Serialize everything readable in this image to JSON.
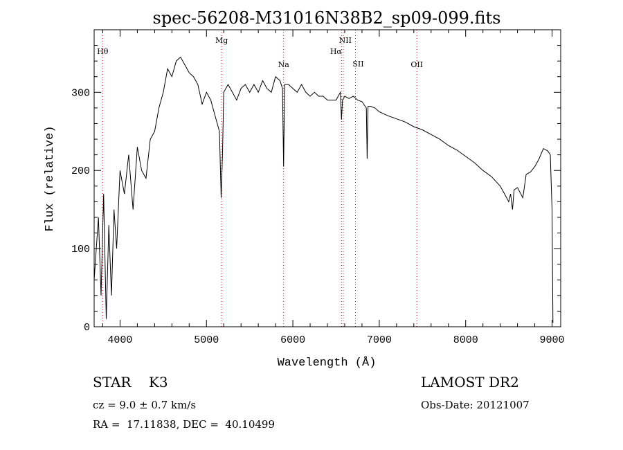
{
  "chart_data": {
    "type": "line",
    "title": "spec-56208-M31016N38B2_sp09-099.fits",
    "xlabel": "Wavelength (Å)",
    "ylabel": "Flux (relative)",
    "xlim": [
      3700,
      9100
    ],
    "ylim": [
      0,
      380
    ],
    "xticks": [
      4000,
      5000,
      6000,
      7000,
      8000,
      9000
    ],
    "yticks": [
      0,
      100,
      200,
      300
    ],
    "grid": false,
    "line_color": "#000000",
    "marker_color": "#cc0000",
    "line_markers": [
      {
        "label": "Hθ",
        "x": 3798
      },
      {
        "label": "Mg",
        "x": 5175
      },
      {
        "label": "Na",
        "x": 5893
      },
      {
        "label": "NII",
        "x": 6583
      },
      {
        "label": "Hα",
        "x": 6563
      },
      {
        "label": "SII",
        "x": 6724
      },
      {
        "label": "OII",
        "x": 7435
      }
    ],
    "series": [
      {
        "x": [
          3700,
          3750,
          3780,
          3810,
          3840,
          3870,
          3900,
          3930,
          3960,
          4000,
          4050,
          4100,
          4150,
          4200,
          4250,
          4300,
          4350,
          4400,
          4450,
          4500,
          4550,
          4600,
          4650,
          4700,
          4750,
          4800,
          4850,
          4900,
          4950,
          5000,
          5050,
          5100,
          5150,
          5170,
          5185,
          5200,
          5250,
          5300,
          5350,
          5400,
          5450,
          5500,
          5550,
          5600,
          5650,
          5700,
          5750,
          5800,
          5850,
          5880,
          5893,
          5905,
          5950,
          6000,
          6050,
          6100,
          6150,
          6200,
          6250,
          6300,
          6350,
          6400,
          6450,
          6500,
          6550,
          6563,
          6575,
          6600,
          6650,
          6700,
          6750,
          6800,
          6850,
          6860,
          6870,
          6900,
          6950,
          7000,
          7100,
          7200,
          7300,
          7400,
          7500,
          7600,
          7700,
          7800,
          7900,
          8000,
          8100,
          8200,
          8300,
          8400,
          8450,
          8498,
          8520,
          8542,
          8560,
          8600,
          8662,
          8700,
          8750,
          8800,
          8850,
          8900,
          8950,
          8980,
          9000,
          9010
        ],
        "y": [
          60,
          140,
          40,
          170,
          10,
          130,
          40,
          150,
          100,
          200,
          170,
          220,
          150,
          230,
          200,
          190,
          240,
          250,
          280,
          300,
          330,
          320,
          340,
          345,
          335,
          325,
          320,
          310,
          285,
          300,
          290,
          270,
          250,
          165,
          220,
          300,
          310,
          300,
          290,
          305,
          310,
          300,
          310,
          300,
          315,
          305,
          300,
          320,
          315,
          305,
          205,
          310,
          310,
          305,
          300,
          310,
          300,
          295,
          300,
          295,
          295,
          290,
          290,
          290,
          300,
          265,
          290,
          295,
          292,
          295,
          290,
          288,
          280,
          215,
          282,
          282,
          280,
          275,
          270,
          266,
          262,
          256,
          252,
          246,
          240,
          232,
          226,
          218,
          210,
          200,
          192,
          180,
          170,
          160,
          170,
          150,
          175,
          178,
          165,
          195,
          198,
          205,
          215,
          228,
          225,
          220,
          150,
          5
        ]
      }
    ],
    "info": {
      "class_text": "STAR    K3",
      "survey": "LAMOST DR2",
      "cz": "cz = 9.0 ± 0.7 km/s",
      "obs_date": "Obs-Date: 20121007",
      "coords": "RA =  17.11838, DEC =  40.10499"
    }
  }
}
